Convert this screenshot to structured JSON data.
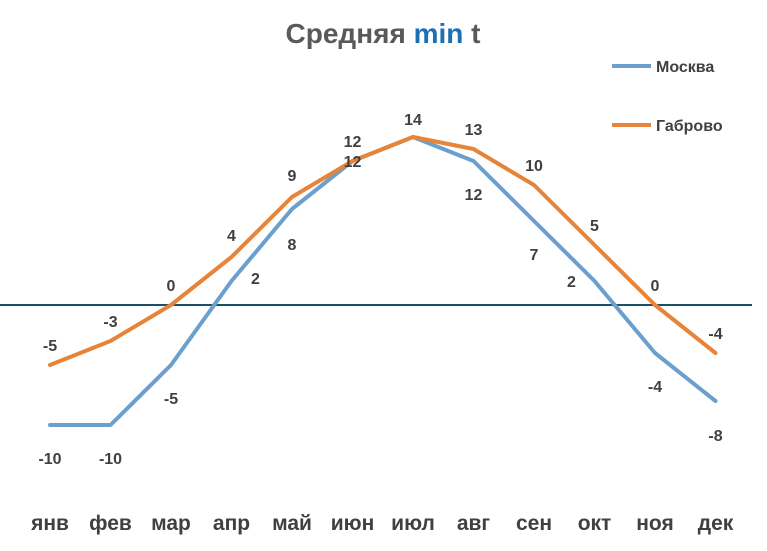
{
  "chart_data": {
    "type": "line",
    "title": "Средняя min t",
    "title_parts": [
      "Средняя ",
      "min",
      " t"
    ],
    "title_accent_color": "#1f6fb5",
    "title_color": "#595959",
    "categories": [
      "янв",
      "фев",
      "мар",
      "апр",
      "май",
      "июн",
      "июл",
      "авг",
      "сен",
      "окт",
      "ноя",
      "дек"
    ],
    "series": [
      {
        "name": "Москва",
        "color": "#6a9fce",
        "values": [
          -10,
          -10,
          -5,
          2,
          8,
          12,
          14,
          12,
          7,
          2,
          -4,
          -8
        ],
        "labels": [
          "-10",
          "-10",
          "-5",
          "2",
          "8",
          "12",
          "",
          "12",
          "7",
          "2",
          "-4",
          "-8"
        ]
      },
      {
        "name": "Габрово",
        "color": "#e6843a",
        "values": [
          -5,
          -3,
          0,
          4,
          9,
          12,
          14,
          13,
          10,
          5,
          0,
          -4
        ],
        "labels": [
          "-5",
          "-3",
          "0",
          "4",
          "9",
          "12",
          "14",
          "13",
          "10",
          "5",
          "0",
          "-4"
        ]
      }
    ],
    "zero_line_color": "#1f4e68",
    "legend_position": "top-right",
    "grid": false,
    "xlabel": "",
    "ylabel": "",
    "ylim": [
      -14,
      16
    ]
  }
}
